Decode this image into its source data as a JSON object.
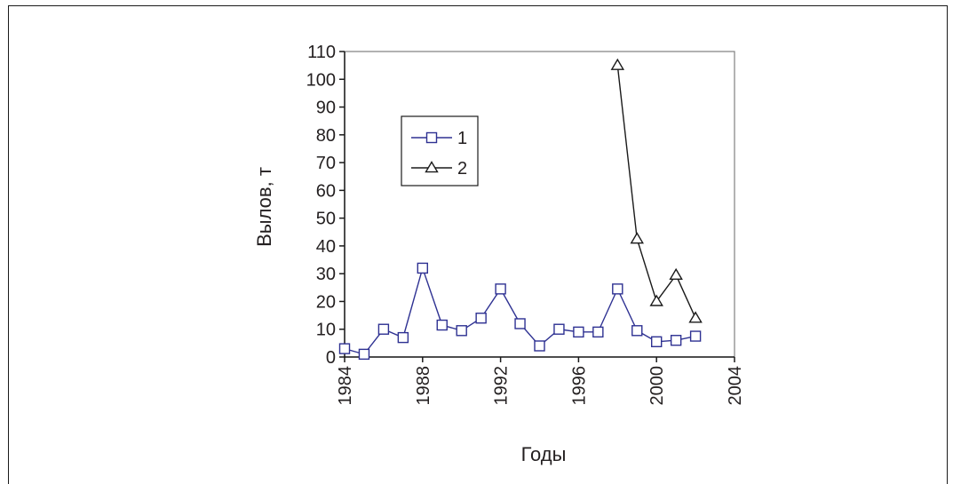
{
  "chart_data": {
    "type": "line",
    "title": "",
    "xlabel": "Годы",
    "ylabel": "Вылов, т",
    "xlim": [
      1984,
      2004
    ],
    "ylim": [
      0,
      110
    ],
    "xticks": [
      "1984",
      "1988",
      "1992",
      "1996",
      "2000",
      "2004"
    ],
    "yticks": [
      "0",
      "10",
      "20",
      "30",
      "40",
      "50",
      "60",
      "70",
      "80",
      "90",
      "100",
      "110"
    ],
    "grid": false,
    "legend_position": "upper-left",
    "series": [
      {
        "name": "1",
        "marker": "square",
        "color": "#2e3192",
        "x": [
          1984,
          1985,
          1986,
          1987,
          1988,
          1989,
          1990,
          1991,
          1992,
          1993,
          1994,
          1995,
          1996,
          1997,
          1998,
          1999,
          2000,
          2001,
          2002
        ],
        "y": [
          3,
          1,
          10,
          7,
          32,
          11.5,
          9.5,
          14,
          24.5,
          12,
          4,
          10,
          9,
          9,
          24.5,
          9.5,
          5.5,
          6,
          7.5
        ]
      },
      {
        "name": "2",
        "marker": "triangle",
        "color": "#1a1a1a",
        "x": [
          1998,
          1999,
          2000,
          2001,
          2002
        ],
        "y": [
          105,
          42.5,
          20,
          29.5,
          14
        ]
      }
    ]
  }
}
